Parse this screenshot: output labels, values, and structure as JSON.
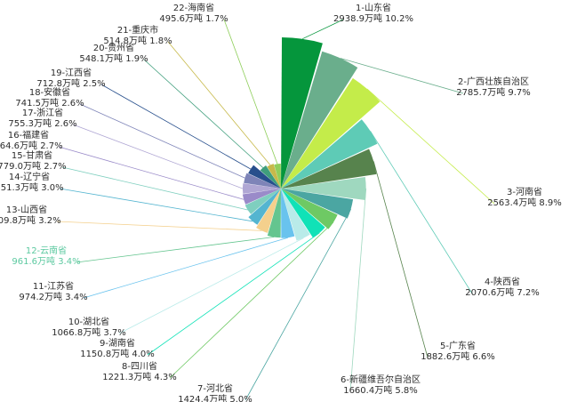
{
  "chart_data": {
    "type": "pie",
    "variant": "rose",
    "unit": "万吨",
    "title": "",
    "legend": "none",
    "highlight_rank": 12,
    "slices": [
      {
        "rank": 1,
        "name": "山东省",
        "value": 2938.9,
        "percent": 10.2,
        "color": "#05963c"
      },
      {
        "rank": 2,
        "name": "广西壮族自治区",
        "value": 2785.7,
        "percent": 9.7,
        "color": "#6aae8c"
      },
      {
        "rank": 3,
        "name": "河南省",
        "value": 2563.4,
        "percent": 8.9,
        "color": "#c4ec4a"
      },
      {
        "rank": 4,
        "name": "陕西省",
        "value": 2070.6,
        "percent": 7.2,
        "color": "#5ecbb6"
      },
      {
        "rank": 5,
        "name": "广东省",
        "value": 1882.6,
        "percent": 6.6,
        "color": "#57834d"
      },
      {
        "rank": 6,
        "name": "新疆维吾尔自治区",
        "value": 1660.4,
        "percent": 5.8,
        "color": "#9fd8bf"
      },
      {
        "rank": 7,
        "name": "河北省",
        "value": 1424.4,
        "percent": 5.0,
        "color": "#4ba6a2"
      },
      {
        "rank": 8,
        "name": "四川省",
        "value": 1221.3,
        "percent": 4.3,
        "color": "#6ec964"
      },
      {
        "rank": 9,
        "name": "湖南省",
        "value": 1150.8,
        "percent": 4.0,
        "color": "#10e2b7"
      },
      {
        "rank": 10,
        "name": "湖北省",
        "value": 1066.8,
        "percent": 3.7,
        "color": "#b9ebe9"
      },
      {
        "rank": 11,
        "name": "江苏省",
        "value": 974.2,
        "percent": 3.4,
        "color": "#69c3ee"
      },
      {
        "rank": 12,
        "name": "云南省",
        "value": 961.6,
        "percent": 3.4,
        "color": "#64c58f"
      },
      {
        "rank": 13,
        "name": "山西省",
        "value": 909.8,
        "percent": 3.2,
        "color": "#f4d08d"
      },
      {
        "rank": 14,
        "name": "辽宁省",
        "value": 851.3,
        "percent": 3.0,
        "color": "#54b5d0"
      },
      {
        "rank": 15,
        "name": "甘肃省",
        "value": 779.0,
        "percent": 2.7,
        "color": "#7fcfbf"
      },
      {
        "rank": 16,
        "name": "福建省",
        "value": 764.6,
        "percent": 2.7,
        "color": "#9a8bc9"
      },
      {
        "rank": 17,
        "name": "浙江省",
        "value": 755.3,
        "percent": 2.6,
        "color": "#b0a7d4"
      },
      {
        "rank": 18,
        "name": "安徽省",
        "value": 741.5,
        "percent": 2.6,
        "color": "#7e84b8"
      },
      {
        "rank": 19,
        "name": "江西省",
        "value": 712.8,
        "percent": 2.5,
        "color": "#274f8c"
      },
      {
        "rank": 20,
        "name": "贵州省",
        "value": 548.1,
        "percent": 1.9,
        "color": "#3f9e7c"
      },
      {
        "rank": 21,
        "name": "重庆市",
        "value": 514.8,
        "percent": 1.8,
        "color": "#c7b94a"
      },
      {
        "rank": 22,
        "name": "海南省",
        "value": 495.6,
        "percent": 1.7,
        "color": "#8fce5b"
      }
    ]
  }
}
